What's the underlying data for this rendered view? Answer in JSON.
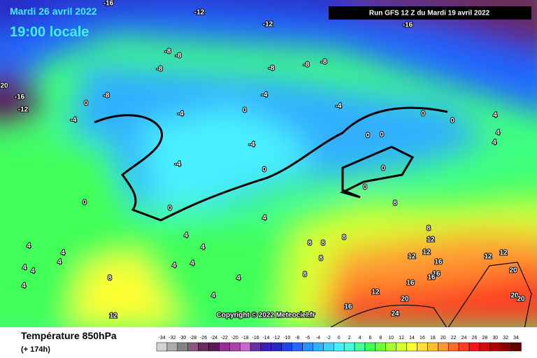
{
  "header": {
    "date": "Mardi 26 avril 2022",
    "time": "19:00 locale",
    "run": "Run GFS 12 Z du Mardi 19 avril 2022"
  },
  "copyright": "Copyright © 2022 Meteociel.fr",
  "footer": {
    "title": "Température 850hPa",
    "lead": "(+ 174h)"
  },
  "labels": [
    -16,
    -12,
    -12,
    -16,
    -8,
    -8,
    -8,
    -8,
    -8,
    -8,
    20,
    -16,
    -12,
    -8,
    0,
    -4,
    -4,
    -4,
    0,
    -4,
    0,
    4,
    0,
    0,
    0,
    4,
    4,
    -4,
    -4,
    0,
    0,
    0,
    0,
    0,
    4,
    4,
    4,
    4,
    4,
    4,
    4,
    4,
    4,
    4,
    4,
    8,
    4,
    4,
    8,
    8,
    8,
    8,
    8,
    12,
    12,
    12,
    12,
    12,
    16,
    8,
    16,
    16,
    8,
    16,
    20,
    12,
    12,
    20,
    16,
    20,
    20,
    24
  ],
  "scale": [
    {
      "value": -34,
      "color": "#d4d4d4"
    },
    {
      "value": -32,
      "color": "#acacac"
    },
    {
      "value": -30,
      "color": "#848484"
    },
    {
      "value": -28,
      "color": "#8c5a80"
    },
    {
      "value": -26,
      "color": "#6c2a5c"
    },
    {
      "value": -24,
      "color": "#5a1a58"
    },
    {
      "value": -22,
      "color": "#9a2a9a"
    },
    {
      "value": -20,
      "color": "#b040b0"
    },
    {
      "value": -18,
      "color": "#c868c8"
    },
    {
      "value": -16,
      "color": "#6a30a8"
    },
    {
      "value": -14,
      "color": "#4020b8"
    },
    {
      "value": -12,
      "color": "#2828c8"
    },
    {
      "value": -10,
      "color": "#2044e4"
    },
    {
      "value": -8,
      "color": "#2468ff"
    },
    {
      "value": -6,
      "color": "#2890ff"
    },
    {
      "value": -4,
      "color": "#30b0ff"
    },
    {
      "value": -2,
      "color": "#40d0ff"
    },
    {
      "value": 0,
      "color": "#48f0ff"
    },
    {
      "value": 2,
      "color": "#40ffd8"
    },
    {
      "value": 4,
      "color": "#40ff98"
    },
    {
      "value": 6,
      "color": "#40ff58"
    },
    {
      "value": 8,
      "color": "#70ff30"
    },
    {
      "value": 10,
      "color": "#a8ff30"
    },
    {
      "value": 12,
      "color": "#d8ff30"
    },
    {
      "value": 14,
      "color": "#ffff30"
    },
    {
      "value": 16,
      "color": "#ffe030"
    },
    {
      "value": 18,
      "color": "#ffc030"
    },
    {
      "value": 20,
      "color": "#ff9830"
    },
    {
      "value": 22,
      "color": "#ff6a30"
    },
    {
      "value": 24,
      "color": "#ff3c20"
    },
    {
      "value": 26,
      "color": "#f01818"
    },
    {
      "value": 28,
      "color": "#d00c0c"
    },
    {
      "value": 30,
      "color": "#b00000"
    },
    {
      "value": 32,
      "color": "#880000"
    },
    {
      "value": 34,
      "color": "#600000"
    }
  ]
}
